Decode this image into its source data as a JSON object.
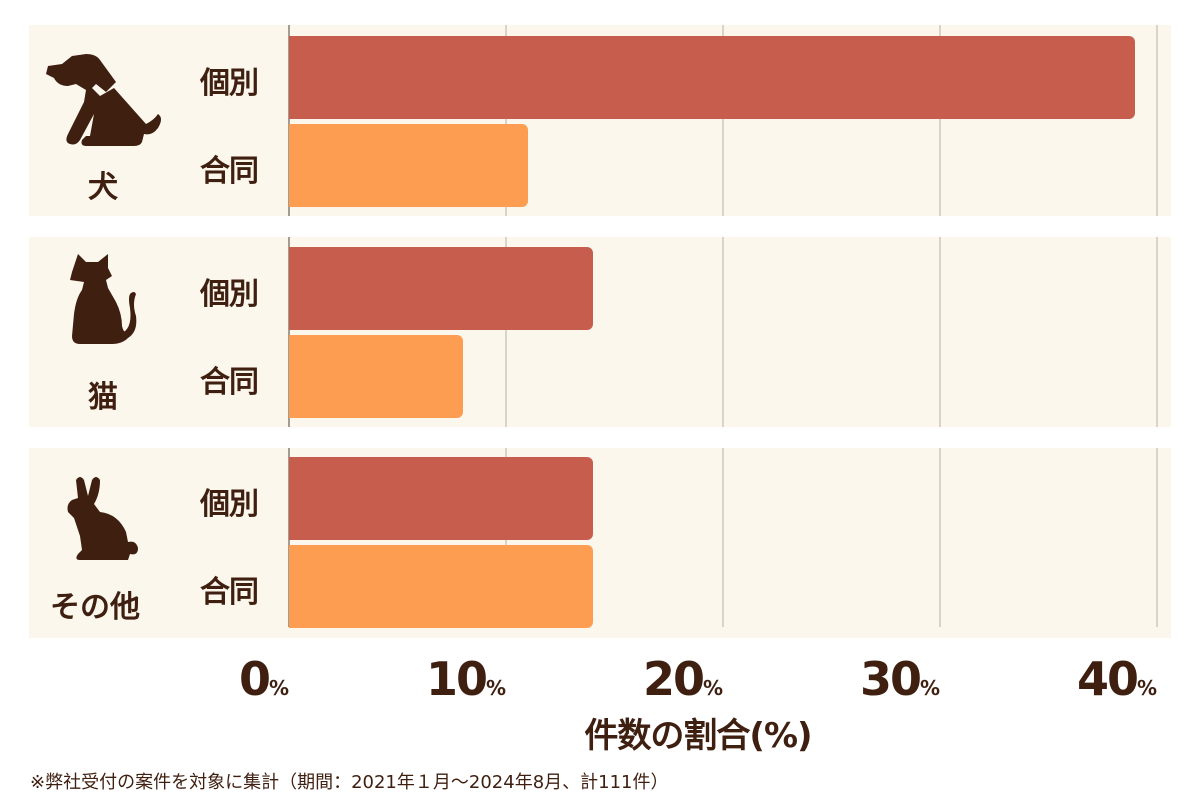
{
  "chart_data": {
    "type": "bar",
    "orientation": "horizontal",
    "title": "",
    "xlabel": "件数の割合(%)",
    "ylabel": "",
    "xlim": [
      0,
      40
    ],
    "xticks": [
      "0%",
      "10%",
      "20%",
      "30%",
      "40%"
    ],
    "grid": true,
    "categories": [
      "犬",
      "猫",
      "その他"
    ],
    "series": [
      {
        "name": "個別",
        "color": "#c65d4d",
        "values": [
          39,
          14,
          14
        ]
      },
      {
        "name": "合同",
        "color": "#fd9d51",
        "values": [
          11,
          8,
          14
        ]
      }
    ],
    "annotation": "※弊社受付の案件を対象に集計（期間：2021年１月〜2024年8月、計111件）"
  },
  "groups": [
    {
      "label": "犬",
      "icon": "dog-icon",
      "series": [
        {
          "label": "個別",
          "value": 39
        },
        {
          "label": "合同",
          "value": 11
        }
      ]
    },
    {
      "label": "猫",
      "icon": "cat-icon",
      "series": [
        {
          "label": "個別",
          "value": 14
        },
        {
          "label": "合同",
          "value": 8
        }
      ]
    },
    {
      "label": "その他",
      "icon": "rabbit-icon",
      "series": [
        {
          "label": "個別",
          "value": 14
        },
        {
          "label": "合同",
          "value": 14
        }
      ]
    }
  ],
  "axis": {
    "ticks": [
      {
        "num": "0",
        "unit": "%"
      },
      {
        "num": "10",
        "unit": "%"
      },
      {
        "num": "20",
        "unit": "%"
      },
      {
        "num": "30",
        "unit": "%"
      },
      {
        "num": "40",
        "unit": "%"
      }
    ],
    "title": "件数の割合(%)"
  },
  "footnote": "※弊社受付の案件を対象に集計（期間：2021年１月〜2024年8月、計111件）",
  "colors": {
    "individual": "#c65d4d",
    "joint": "#fd9d51",
    "panel_bg": "#fcf7ec",
    "text": "#3f1f10"
  }
}
